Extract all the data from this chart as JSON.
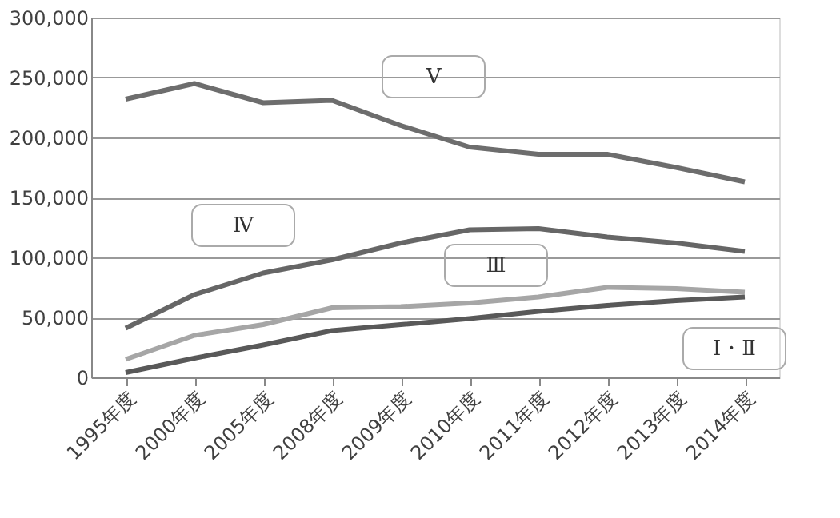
{
  "chart_data": {
    "type": "line",
    "categories": [
      "1995年度",
      "2000年度",
      "2005年度",
      "2008年度",
      "2009年度",
      "2010年度",
      "2011年度",
      "2012年度",
      "2013年度",
      "2014年度"
    ],
    "series": [
      {
        "name": "Ⅴ",
        "color": "#6d6d6d",
        "values": [
          232000,
          245000,
          229000,
          231000,
          210000,
          192000,
          186000,
          186000,
          175000,
          163000
        ]
      },
      {
        "name": "Ⅳ",
        "color": "#666666",
        "values": [
          41000,
          69000,
          87000,
          98000,
          112000,
          123000,
          124000,
          117000,
          112000,
          105000
        ]
      },
      {
        "name": "Ⅲ",
        "color": "#a6a6a6",
        "values": [
          15000,
          35000,
          44000,
          58000,
          59000,
          62000,
          67000,
          75000,
          74000,
          71000
        ]
      },
      {
        "name": "Ⅰ・Ⅱ",
        "color": "#595959",
        "values": [
          4000,
          16000,
          27000,
          39000,
          44000,
          49000,
          55000,
          60000,
          64000,
          67000
        ]
      }
    ],
    "ylim": [
      0,
      300000
    ],
    "yticks": [
      0,
      {
        "value": 50000,
        "label": "50,000"
      },
      {
        "value": 100000,
        "label": "100,000"
      },
      {
        "value": 150000,
        "label": "150,000"
      },
      {
        "value": 200000,
        "label": "200,000"
      },
      {
        "value": 250000,
        "label": "250,000"
      },
      {
        "value": 300000,
        "label": "300,000"
      }
    ],
    "grid": "y",
    "legend": false,
    "marker": "none",
    "line_style": "solid"
  }
}
